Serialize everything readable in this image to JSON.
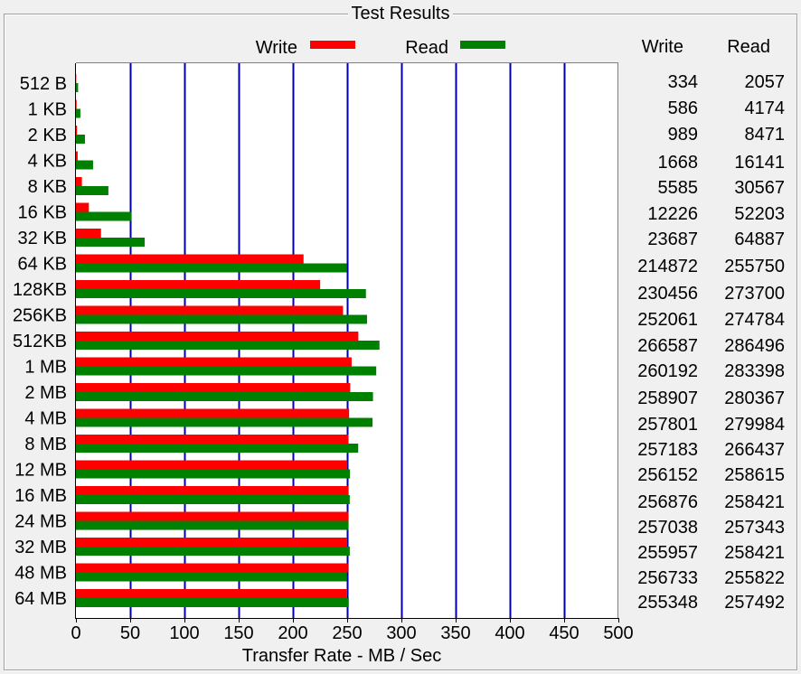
{
  "panel": {
    "title": "Test Results"
  },
  "columns": {
    "write": "Write",
    "read": "Read"
  },
  "colors": {
    "write": "#ff0000",
    "read": "#008000",
    "grid": "#0000a0",
    "plot_bg": "#ffffff"
  },
  "chart_data": {
    "type": "bar",
    "orientation": "horizontal",
    "categories": [
      "512 B",
      "1 KB",
      "2 KB",
      "4 KB",
      "8 KB",
      "16 KB",
      "32 KB",
      "64 KB",
      "128KB",
      "256KB",
      "512KB",
      "1 MB",
      "2 MB",
      "4 MB",
      "8 MB",
      "12 MB",
      "16 MB",
      "24 MB",
      "32 MB",
      "48 MB",
      "64 MB"
    ],
    "series": [
      {
        "name": "Write",
        "color": "#ff0000",
        "values": [
          0.3,
          0.6,
          1.0,
          1.6,
          5.5,
          11.9,
          23.1,
          209.8,
          225.1,
          246.2,
          260.3,
          254.1,
          252.8,
          251.8,
          251.2,
          250.1,
          250.9,
          251.0,
          250.0,
          250.7,
          249.4
        ]
      },
      {
        "name": "Read",
        "color": "#008000",
        "values": [
          2.0,
          4.1,
          8.3,
          15.8,
          29.9,
          51.0,
          63.4,
          249.8,
          267.3,
          268.3,
          279.8,
          276.8,
          273.8,
          273.4,
          260.2,
          252.6,
          252.4,
          251.3,
          252.4,
          249.8,
          251.5
        ]
      }
    ],
    "table": {
      "write": [
        "334",
        "586",
        "989",
        "1668",
        "5585",
        "12226",
        "23687",
        "214872",
        "230456",
        "252061",
        "266587",
        "260192",
        "258907",
        "257801",
        "257183",
        "256152",
        "256876",
        "257038",
        "255957",
        "256733",
        "255348"
      ],
      "read": [
        "2057",
        "4174",
        "8471",
        "16141",
        "30567",
        "52203",
        "64887",
        "255750",
        "273700",
        "274784",
        "286496",
        "283398",
        "280367",
        "279984",
        "266437",
        "258615",
        "258421",
        "257343",
        "258421",
        "255822",
        "257492"
      ]
    },
    "xlabel": "Transfer Rate - MB / Sec",
    "xlim": [
      0,
      500
    ],
    "xticks": [
      0,
      50,
      100,
      150,
      200,
      250,
      300,
      350,
      400,
      450,
      500
    ],
    "grid": true,
    "legend": "top-center"
  }
}
